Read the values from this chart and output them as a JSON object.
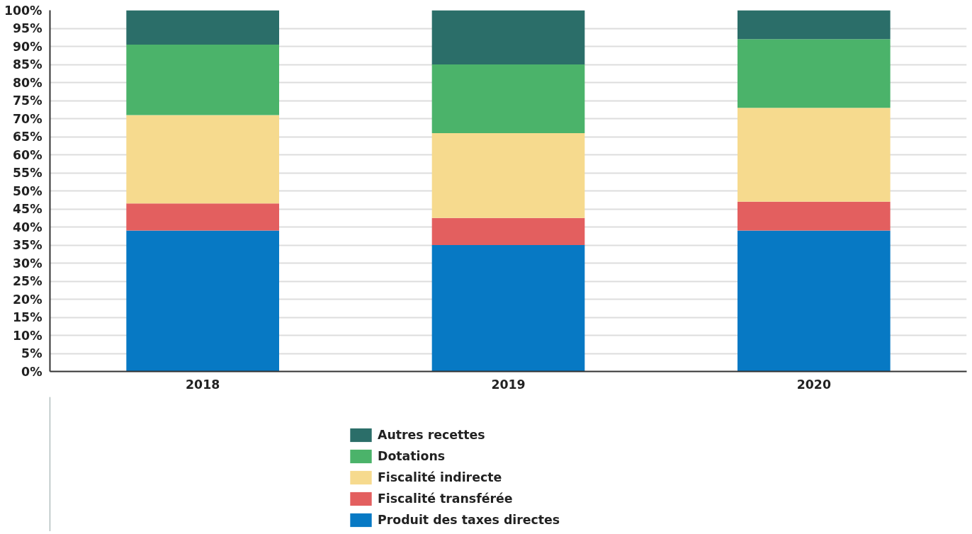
{
  "chart_data": {
    "type": "bar",
    "stacked": true,
    "categories": [
      "2018",
      "2019",
      "2020"
    ],
    "series": [
      {
        "name": "Produit des taxes directes",
        "color": "#0779c4",
        "values": [
          39,
          35,
          39
        ]
      },
      {
        "name": "Fiscalité transférée",
        "color": "#e35f5f",
        "values": [
          7.5,
          7.5,
          8
        ]
      },
      {
        "name": "Fiscalité indirecte",
        "color": "#f6da8e",
        "values": [
          24.5,
          23.5,
          26
        ]
      },
      {
        "name": "Dotations",
        "color": "#4bb36a",
        "values": [
          19.5,
          19,
          19
        ]
      },
      {
        "name": "Autres recettes",
        "color": "#2b6e69",
        "values": [
          9.5,
          15,
          8
        ]
      }
    ],
    "ylim": [
      0,
      100
    ],
    "yticks": [
      {
        "value": 0,
        "label": "0%"
      },
      {
        "value": 5,
        "label": "5%"
      },
      {
        "value": 10,
        "label": "10%"
      },
      {
        "value": 15,
        "label": "15%"
      },
      {
        "value": 20,
        "label": "20%"
      },
      {
        "value": 25,
        "label": "25%"
      },
      {
        "value": 30,
        "label": "30%"
      },
      {
        "value": 35,
        "label": "35%"
      },
      {
        "value": 40,
        "label": "40%"
      },
      {
        "value": 45,
        "label": "45%"
      },
      {
        "value": 50,
        "label": "50%"
      },
      {
        "value": 55,
        "label": "55%"
      },
      {
        "value": 60,
        "label": "60%"
      },
      {
        "value": 65,
        "label": "65%"
      },
      {
        "value": 70,
        "label": "70%"
      },
      {
        "value": 75,
        "label": "75%"
      },
      {
        "value": 80,
        "label": "80%"
      },
      {
        "value": 85,
        "label": "85%"
      },
      {
        "value": 90,
        "label": "90%"
      },
      {
        "value": 95,
        "label": "95%"
      },
      {
        "value": 100,
        "label": "100%"
      }
    ],
    "grid": "y",
    "legend": "bottom"
  }
}
